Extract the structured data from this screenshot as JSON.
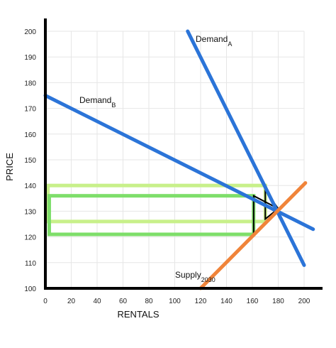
{
  "chart_data": {
    "type": "line",
    "xlabel": "RENTALS",
    "ylabel": "PRICE",
    "xlim": [
      0,
      200
    ],
    "ylim": [
      100,
      200
    ],
    "x_ticks": [
      0,
      20,
      40,
      60,
      80,
      100,
      120,
      140,
      160,
      180,
      200
    ],
    "y_ticks": [
      100,
      110,
      120,
      130,
      140,
      150,
      160,
      170,
      180,
      190,
      200
    ],
    "grid": true,
    "colors": {
      "demand": "#2b74d8",
      "supply": "#f0843a",
      "outer_rect": "#c8f08a",
      "inner_rect": "#7ede6a",
      "triangle": "#000000",
      "axis": "#000000",
      "grid": "#e6e6e6"
    },
    "series": [
      {
        "name": "Demand_A",
        "label_main": "Demand",
        "label_sub": "A",
        "kind": "demand",
        "points": [
          [
            110,
            200
          ],
          [
            200,
            109
          ]
        ]
      },
      {
        "name": "Demand_B",
        "label_main": "Demand",
        "label_sub": "B",
        "kind": "demand",
        "points": [
          [
            0,
            175
          ],
          [
            207,
            123
          ]
        ]
      },
      {
        "name": "Supply_2030",
        "label_main": "Supply",
        "label_sub": "2030",
        "kind": "supply",
        "points": [
          [
            120,
            100
          ],
          [
            201,
            141
          ]
        ]
      }
    ],
    "shapes": [
      {
        "kind": "rectangle",
        "style": "outer_rect",
        "x": [
          2,
          170
        ],
        "y": [
          126,
          140
        ]
      },
      {
        "kind": "rectangle",
        "style": "inner_rect",
        "x": [
          3,
          161
        ],
        "y": [
          121,
          136
        ]
      },
      {
        "kind": "triangle",
        "style": "triangle",
        "points": [
          [
            161,
            121
          ],
          [
            161,
            136
          ],
          [
            180,
            131
          ]
        ]
      },
      {
        "kind": "triangle",
        "style": "triangle",
        "points": [
          [
            170,
            127
          ],
          [
            170,
            138
          ],
          [
            180,
            131
          ]
        ]
      }
    ]
  }
}
